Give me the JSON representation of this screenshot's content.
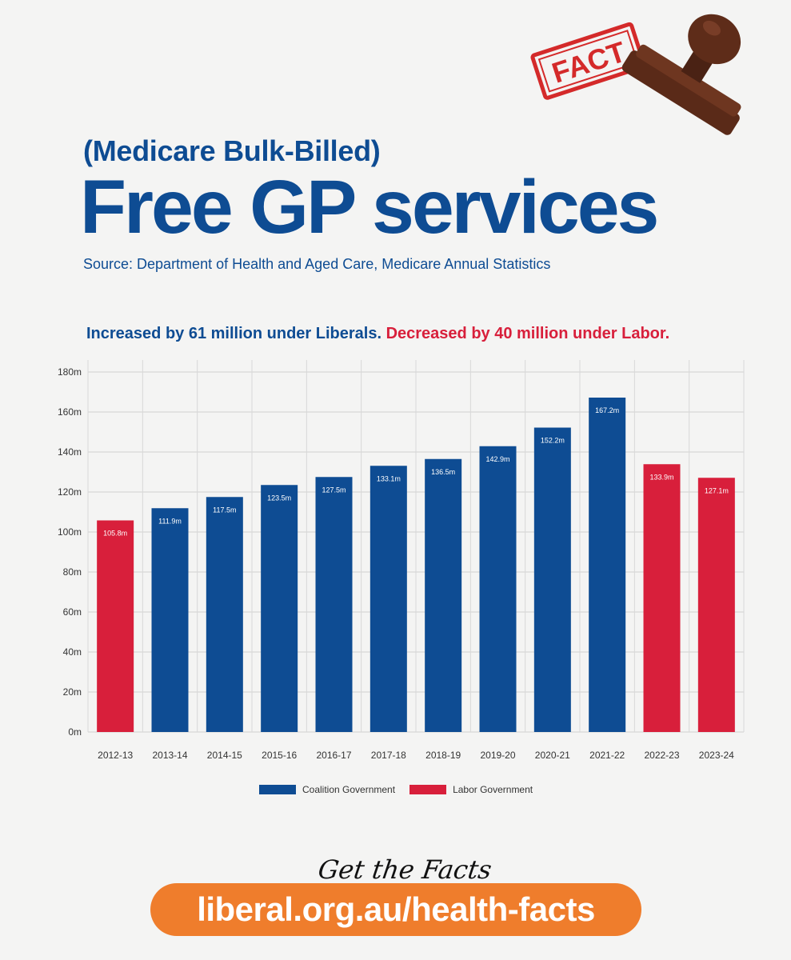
{
  "header": {
    "subtitle": "(Medicare Bulk-Billed)",
    "title": "Free GP services",
    "source": "Source: Department of Health and Aged Care, Medicare Annual Statistics",
    "headline_liberal": "Increased by 61 million under Liberals.",
    "headline_labor": "Decreased by 40 million under Labor."
  },
  "stamp": {
    "text": "FACT"
  },
  "colors": {
    "coalition": "#0e4c93",
    "labor": "#d81f3b",
    "accent_orange": "#ef7d2c"
  },
  "chart_data": {
    "type": "bar",
    "categories": [
      "2012-13",
      "2013-14",
      "2014-15",
      "2015-16",
      "2016-17",
      "2017-18",
      "2018-19",
      "2019-20",
      "2020-21",
      "2021-22",
      "2022-23",
      "2023-24"
    ],
    "values": [
      105.8,
      111.9,
      117.5,
      123.5,
      127.5,
      133.1,
      136.5,
      142.9,
      152.2,
      167.2,
      133.9,
      127.1
    ],
    "value_labels": [
      "105.8m",
      "111.9m",
      "117.5m",
      "123.5m",
      "127.5m",
      "133.1m",
      "136.5m",
      "142.9m",
      "152.2m",
      "167.2m",
      "133.9m",
      "127.1m"
    ],
    "government": [
      "Labor",
      "Coalition",
      "Coalition",
      "Coalition",
      "Coalition",
      "Coalition",
      "Coalition",
      "Coalition",
      "Coalition",
      "Coalition",
      "Labor",
      "Labor"
    ],
    "ylim": [
      0,
      180
    ],
    "yticks": [
      "0m",
      "20m",
      "40m",
      "60m",
      "80m",
      "100m",
      "120m",
      "140m",
      "160m",
      "180m"
    ],
    "grid": true,
    "legend": [
      {
        "name": "Coalition Government",
        "color": "#0e4c93"
      },
      {
        "name": "Labor Government",
        "color": "#d81f3b"
      }
    ],
    "legend_placement": "bottom"
  },
  "cta": {
    "tagline": "Get the Facts",
    "url": "liberal.org.au/health-facts"
  }
}
